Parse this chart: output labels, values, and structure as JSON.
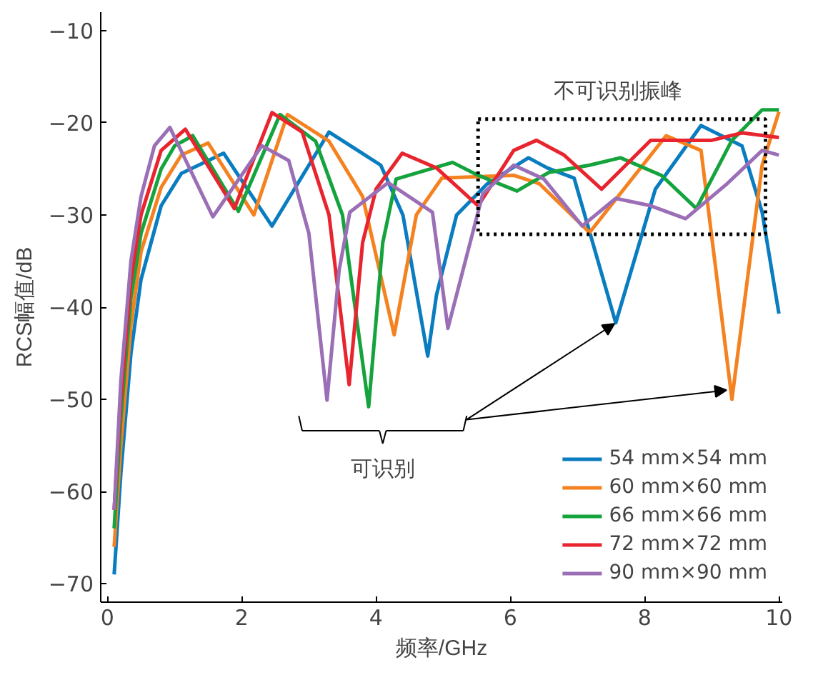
{
  "chart_data": {
    "type": "line",
    "xlabel": "频率/GHz",
    "ylabel": "RCS幅值/dB",
    "xlim": [
      -0.1,
      10.05
    ],
    "ylim": [
      -72,
      -8
    ],
    "xticks": [
      0,
      2,
      4,
      6,
      8,
      10
    ],
    "yticks": [
      -70,
      -60,
      -50,
      -40,
      -30,
      -20,
      -10
    ],
    "grid": false,
    "legend": "bottom right",
    "line_style": "solid",
    "annotations": [
      "不可识别振峰",
      "可识别"
    ],
    "series": [
      {
        "name": "54 mm×54 mm",
        "color": "#0a7cc0",
        "x": [
          0.1,
          0.2,
          0.35,
          0.5,
          0.8,
          1.1,
          1.73,
          2.45,
          3.3,
          4.07,
          4.4,
          4.77,
          4.9,
          5.2,
          5.66,
          6.27,
          6.55,
          6.95,
          7.57,
          8.16,
          8.84,
          9.45,
          9.75,
          10
        ],
        "values": [
          -69,
          -58,
          -45,
          -37,
          -29,
          -25.5,
          -23.3,
          -31.2,
          -21,
          -24.6,
          -30,
          -45.3,
          -38.7,
          -30,
          -26.6,
          -23.8,
          -24.9,
          -26,
          -41.7,
          -27.2,
          -20.3,
          -22.5,
          -29.7,
          -40.7
        ]
      },
      {
        "name": "60 mm×60 mm",
        "color": "#f58220",
        "x": [
          0.1,
          0.2,
          0.35,
          0.5,
          0.8,
          1.1,
          1.5,
          2.18,
          2.68,
          3.3,
          3.8,
          4.27,
          4.6,
          4.98,
          6.05,
          6.43,
          7.18,
          8.32,
          8.84,
          9.3,
          9.75,
          10
        ],
        "values": [
          -66,
          -55,
          -42,
          -34,
          -27,
          -23.5,
          -22.2,
          -30,
          -19.1,
          -22,
          -28,
          -43,
          -30,
          -26,
          -25.7,
          -26.6,
          -31.9,
          -21.4,
          -23,
          -50,
          -24.6,
          -18.8
        ]
      },
      {
        "name": "66 mm×66 mm",
        "color": "#14a33c",
        "x": [
          0.1,
          0.2,
          0.35,
          0.5,
          0.8,
          1.0,
          1.27,
          1.95,
          2.57,
          3.1,
          3.5,
          3.89,
          4.1,
          4.3,
          5.14,
          5.52,
          6.1,
          6.57,
          7.18,
          7.64,
          8.25,
          8.77,
          9.3,
          9.75,
          10
        ],
        "values": [
          -64,
          -52,
          -39,
          -32,
          -25,
          -22.5,
          -21.4,
          -29.6,
          -19.1,
          -22,
          -30,
          -50.8,
          -33,
          -26.1,
          -24.3,
          -25.7,
          -27.4,
          -25.4,
          -24.6,
          -23.8,
          -25.7,
          -29.3,
          -21.9,
          -18.6,
          -18.6
        ]
      },
      {
        "name": "72 mm×72 mm",
        "color": "#e8252e",
        "x": [
          0.1,
          0.2,
          0.35,
          0.5,
          0.8,
          1.16,
          1.89,
          2.45,
          2.9,
          3.3,
          3.6,
          3.8,
          4.0,
          4.39,
          4.9,
          5.52,
          6.05,
          6.39,
          6.8,
          7.36,
          8.09,
          9.0,
          9.45,
          10
        ],
        "values": [
          -62,
          -50,
          -37,
          -30,
          -23,
          -20.7,
          -29.3,
          -18.9,
          -21,
          -30,
          -48.4,
          -33,
          -27.2,
          -23.3,
          -24.9,
          -29,
          -23,
          -21.9,
          -23.5,
          -27.2,
          -21.9,
          -21.9,
          -21.1,
          -21.6
        ]
      },
      {
        "name": "90 mm×90 mm",
        "color": "#9b6fb6",
        "x": [
          0.1,
          0.2,
          0.35,
          0.5,
          0.7,
          0.93,
          1.57,
          2.3,
          2.7,
          3.0,
          3.27,
          3.45,
          3.61,
          4.18,
          4.84,
          5.07,
          5.59,
          6.05,
          6.5,
          7.07,
          7.57,
          8.09,
          8.61,
          9.23,
          9.75,
          10
        ],
        "values": [
          -62,
          -48,
          -35,
          -28,
          -22.5,
          -20.5,
          -30.2,
          -22.5,
          -24.1,
          -32,
          -50.1,
          -36,
          -29.7,
          -26.5,
          -29.7,
          -42.3,
          -27.7,
          -24.6,
          -26.1,
          -31.2,
          -28.2,
          -29,
          -30.4,
          -26.6,
          -23,
          -23.5
        ]
      }
    ]
  }
}
